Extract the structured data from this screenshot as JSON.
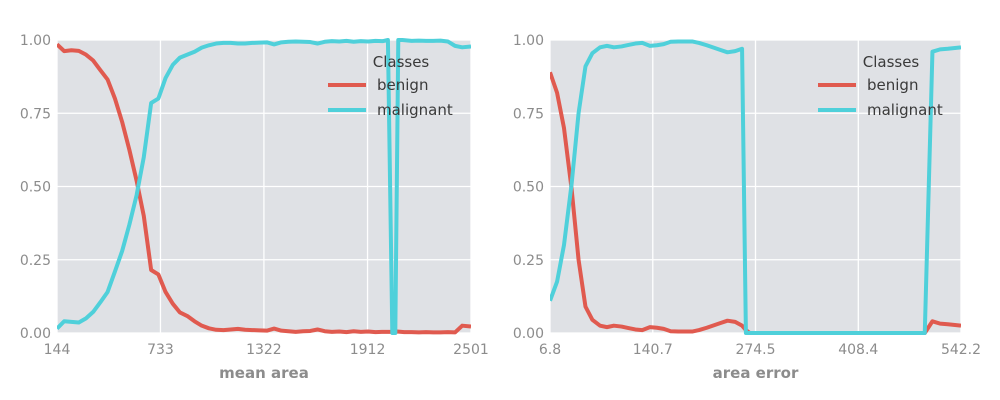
{
  "chart_data": [
    {
      "type": "line",
      "xlabel": "mean area",
      "ylabel": "",
      "xlim": [
        144,
        2501
      ],
      "ylim": [
        0,
        1
      ],
      "xticks": [
        144,
        733,
        1322,
        1912,
        2501
      ],
      "xtick_labels": [
        "144",
        "733",
        "1322",
        "1912",
        "2501"
      ],
      "yticks": [
        0,
        0.25,
        0.5,
        0.75,
        1.0
      ],
      "ytick_labels": [
        "0.00",
        "0.25",
        "0.50",
        "0.75",
        "1.00"
      ],
      "grid": true,
      "legend": {
        "title": "Classes",
        "position": "top-right"
      },
      "series": [
        {
          "name": "benign",
          "color": "#e05a4f",
          "x": [
            144,
            185,
            226,
            268,
            309,
            350,
            391,
            432,
            474,
            515,
            556,
            597,
            638,
            680,
            721,
            762,
            803,
            844,
            886,
            927,
            968,
            1009,
            1050,
            1092,
            1133,
            1174,
            1215,
            1256,
            1297,
            1339,
            1380,
            1421,
            1462,
            1503,
            1545,
            1586,
            1627,
            1668,
            1709,
            1751,
            1792,
            1833,
            1874,
            1915,
            1957,
            1998,
            2039,
            2080,
            2121,
            2163,
            2204,
            2245,
            2286,
            2327,
            2369,
            2410,
            2451,
            2501
          ],
          "values": [
            0.985,
            0.962,
            0.965,
            0.963,
            0.95,
            0.93,
            0.897,
            0.865,
            0.8,
            0.72,
            0.625,
            0.52,
            0.4,
            0.215,
            0.2,
            0.14,
            0.1,
            0.07,
            0.058,
            0.04,
            0.025,
            0.016,
            0.011,
            0.01,
            0.012,
            0.014,
            0.011,
            0.01,
            0.009,
            0.008,
            0.015,
            0.008,
            0.006,
            0.004,
            0.006,
            0.007,
            0.012,
            0.006,
            0.004,
            0.005,
            0.003,
            0.006,
            0.004,
            0.005,
            0.003,
            0.004,
            0.004,
            0.005,
            0.003,
            0.003,
            0.002,
            0.003,
            0.002,
            0.002,
            0.003,
            0.002,
            0.025,
            0.022
          ]
        },
        {
          "name": "malignant",
          "color": "#4fd0da",
          "x": [
            144,
            185,
            226,
            268,
            309,
            350,
            391,
            432,
            474,
            515,
            556,
            597,
            638,
            680,
            721,
            762,
            803,
            844,
            886,
            927,
            968,
            1009,
            1050,
            1092,
            1133,
            1174,
            1215,
            1256,
            1297,
            1339,
            1380,
            1421,
            1462,
            1503,
            1545,
            1586,
            1627,
            1668,
            1709,
            1751,
            1792,
            1833,
            1874,
            1915,
            1957,
            1998,
            2028,
            2053,
            2070,
            2087,
            2110,
            2163,
            2204,
            2245,
            2286,
            2327,
            2369,
            2410,
            2451,
            2501
          ],
          "values": [
            0.015,
            0.04,
            0.038,
            0.036,
            0.05,
            0.072,
            0.105,
            0.14,
            0.21,
            0.28,
            0.37,
            0.47,
            0.6,
            0.785,
            0.8,
            0.87,
            0.915,
            0.94,
            0.95,
            0.96,
            0.974,
            0.982,
            0.988,
            0.99,
            0.99,
            0.988,
            0.988,
            0.99,
            0.991,
            0.992,
            0.985,
            0.992,
            0.994,
            0.995,
            0.994,
            0.993,
            0.988,
            0.994,
            0.996,
            0.995,
            0.997,
            0.994,
            0.996,
            0.995,
            0.997,
            0.996,
            1.0,
            0.0,
            0.0,
            1.0,
            1.0,
            0.997,
            0.998,
            0.997,
            0.997,
            0.998,
            0.995,
            0.98,
            0.975,
            0.978
          ]
        }
      ]
    },
    {
      "type": "line",
      "xlabel": "area error",
      "ylabel": "",
      "xlim": [
        6.8,
        542.2
      ],
      "ylim": [
        0,
        1
      ],
      "xticks": [
        6.8,
        140.7,
        274.5,
        408.4,
        542.2
      ],
      "xtick_labels": [
        "6.8",
        "140.7",
        "274.5",
        "408.4",
        "542.2"
      ],
      "yticks": [
        0,
        0.25,
        0.5,
        0.75,
        1.0
      ],
      "ytick_labels": [
        "0.00",
        "0.25",
        "0.50",
        "0.75",
        "1.00"
      ],
      "grid": true,
      "legend": {
        "title": "Classes",
        "position": "top-right"
      },
      "series": [
        {
          "name": "benign",
          "color": "#e05a4f",
          "x": [
            6.8,
            16,
            25,
            35,
            44,
            53,
            62,
            72,
            81,
            90,
            100,
            109,
            118,
            127,
            137,
            146,
            155,
            164,
            174,
            183,
            192,
            201,
            211,
            220,
            229,
            238,
            248,
            257,
            262,
            267,
            300,
            400,
            480,
            495,
            505,
            515,
            525,
            542.2
          ],
          "values": [
            0.89,
            0.82,
            0.7,
            0.49,
            0.25,
            0.09,
            0.045,
            0.025,
            0.02,
            0.025,
            0.022,
            0.017,
            0.012,
            0.01,
            0.02,
            0.018,
            0.014,
            0.006,
            0.005,
            0.005,
            0.005,
            0.01,
            0.018,
            0.026,
            0.034,
            0.042,
            0.038,
            0.025,
            0.01,
            0.0,
            0.0,
            0.0,
            0.0,
            0.0,
            0.04,
            0.032,
            0.03,
            0.025
          ]
        },
        {
          "name": "malignant",
          "color": "#4fd0da",
          "x": [
            6.8,
            16,
            25,
            35,
            44,
            53,
            62,
            72,
            81,
            90,
            100,
            109,
            118,
            127,
            137,
            146,
            155,
            164,
            174,
            183,
            192,
            201,
            211,
            220,
            229,
            238,
            248,
            257,
            262,
            267,
            300,
            400,
            480,
            495,
            505,
            515,
            525,
            542.2
          ],
          "values": [
            0.11,
            0.175,
            0.3,
            0.51,
            0.75,
            0.91,
            0.955,
            0.975,
            0.98,
            0.975,
            0.978,
            0.983,
            0.988,
            0.99,
            0.98,
            0.982,
            0.986,
            0.994,
            0.995,
            0.995,
            0.995,
            0.99,
            0.982,
            0.974,
            0.966,
            0.958,
            0.962,
            0.97,
            0.0,
            0.0,
            0.0,
            0.0,
            0.0,
            0.0,
            0.96,
            0.968,
            0.97,
            0.975
          ]
        }
      ]
    }
  ]
}
